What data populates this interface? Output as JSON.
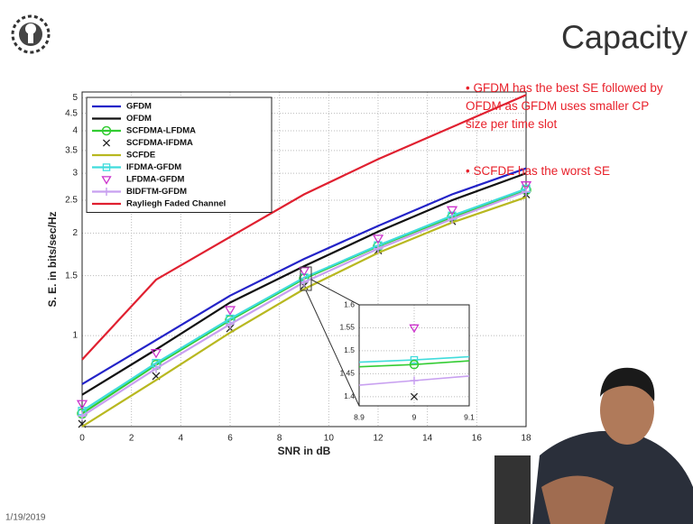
{
  "slide": {
    "title": "Capacity",
    "bullets": [
      [
        "• GFDM  has the best SE followed by",
        "OFDM as GFDM  uses smaller CP",
        "size per time slot"
      ],
      [
        "• SCFDE has the worst SE"
      ]
    ],
    "date": "1/19/2019"
  },
  "chart_data": [
    {
      "type": "line",
      "xlabel": "SNR in dB",
      "ylabel": "S. E. in bits/sec/Hz",
      "x": [
        0,
        3,
        6,
        9,
        12,
        15,
        18
      ],
      "xlim": [
        0,
        18
      ],
      "xticks": [
        0,
        2,
        4,
        6,
        8,
        10,
        12,
        14,
        16,
        18
      ],
      "ylim": [
        0.54,
        5.2
      ],
      "yticks": [
        1,
        1.5,
        2,
        2.5,
        3,
        3.5,
        4,
        4.5,
        5
      ],
      "yscale": "log",
      "grid": true,
      "legend": "upper left",
      "series": [
        {
          "name": "GFDM",
          "color": "#2323c8",
          "marker": "none",
          "line": true,
          "values": [
            0.72,
            0.97,
            1.31,
            1.68,
            2.1,
            2.6,
            3.1
          ]
        },
        {
          "name": "OFDM",
          "color": "#111111",
          "marker": "none",
          "line": true,
          "values": [
            0.67,
            0.91,
            1.25,
            1.6,
            2.02,
            2.5,
            3.0
          ]
        },
        {
          "name": "SCFDMA-LFDMA",
          "color": "#33cc33",
          "marker": "circle",
          "line": true,
          "values": [
            0.59,
            0.82,
            1.11,
            1.47,
            1.83,
            2.23,
            2.68
          ]
        },
        {
          "name": "SCFDMA-IFDMA",
          "color": "#222222",
          "marker": "x",
          "line": false,
          "values": [
            0.55,
            0.76,
            1.05,
            1.4,
            1.78,
            2.17,
            2.6
          ]
        },
        {
          "name": "SCFDE",
          "color": "#b8b820",
          "marker": "none",
          "line": true,
          "values": [
            0.54,
            0.74,
            1.02,
            1.37,
            1.75,
            2.15,
            2.55
          ]
        },
        {
          "name": "IFDMA-GFDM",
          "color": "#40dcdc",
          "marker": "square",
          "line": true,
          "values": [
            0.6,
            0.83,
            1.12,
            1.48,
            1.84,
            2.25,
            2.7
          ]
        },
        {
          "name": "LFDMA-GFDM",
          "color": "#cc33cc",
          "marker": "triangle-down",
          "line": false,
          "values": [
            0.63,
            0.89,
            1.19,
            1.55,
            1.93,
            2.34,
            2.77
          ]
        },
        {
          "name": "BIDFTM-GFDM",
          "color": "#c8a0f0",
          "marker": "plus",
          "line": true,
          "values": [
            0.58,
            0.8,
            1.08,
            1.435,
            1.8,
            2.2,
            2.65
          ]
        },
        {
          "name": "Rayliegh Faded Channel",
          "color": "#e02030",
          "marker": "none",
          "line": true,
          "values": [
            0.85,
            1.46,
            1.95,
            2.6,
            3.3,
            4.1,
            5.1
          ]
        }
      ]
    },
    {
      "type": "line",
      "x": [
        8.9,
        9,
        9.1
      ],
      "xlim": [
        8.9,
        9.1
      ],
      "xticks": [
        8.9,
        9,
        9.1
      ],
      "ylim": [
        1.38,
        1.6
      ],
      "yticks": [
        1.4,
        1.45,
        1.5,
        1.55,
        1.6
      ],
      "yscale": "linear",
      "grid": true,
      "series": [
        {
          "color": "#40dcdc",
          "marker": "none",
          "line": true,
          "values": [
            1.475,
            1.48,
            1.487
          ]
        },
        {
          "color": "#33cc33",
          "marker": "none",
          "line": true,
          "values": [
            1.465,
            1.47,
            1.478
          ]
        },
        {
          "color": "#c8a0f0",
          "marker": "none",
          "line": true,
          "values": [
            1.425,
            1.435,
            1.445
          ]
        },
        {
          "color": "#40dcdc",
          "marker": "square",
          "line": false,
          "values": [
            null,
            1.48,
            null
          ]
        },
        {
          "color": "#33cc33",
          "marker": "circle",
          "line": false,
          "values": [
            null,
            1.47,
            null
          ]
        },
        {
          "color": "#c8a0f0",
          "marker": "plus",
          "line": false,
          "values": [
            null,
            1.435,
            null
          ]
        },
        {
          "color": "#222222",
          "marker": "x",
          "line": false,
          "values": [
            null,
            1.4,
            null
          ]
        },
        {
          "color": "#cc33cc",
          "marker": "triangle-down",
          "line": false,
          "values": [
            null,
            1.55,
            null
          ]
        }
      ]
    }
  ]
}
